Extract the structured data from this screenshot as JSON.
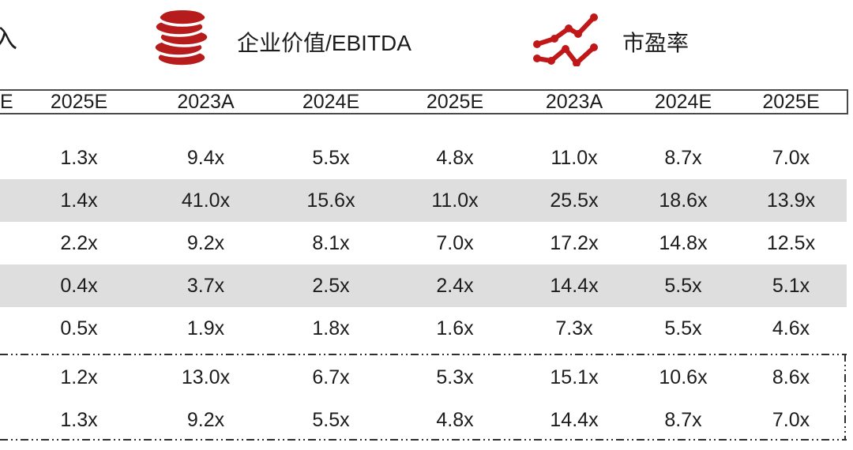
{
  "colors": {
    "accent_red": "#b71c1c",
    "row_shade": "#dedede",
    "text": "#1c1c1c",
    "header_border": "#4a4a4a"
  },
  "legend": {
    "clipped_label": "入",
    "ev_ebitda": {
      "icon": "coins-icon",
      "label": "企业价值/EBITDA"
    },
    "pe": {
      "icon": "line-chart-icon",
      "label": "市盈率"
    }
  },
  "table": {
    "header_clipped": "E",
    "header_cols": [
      "2025E",
      "2023A",
      "2024E",
      "2025E",
      "2023A",
      "2024E",
      "2025E"
    ],
    "rows": [
      {
        "shaded": false,
        "values": [
          "1.3x",
          "9.4x",
          "5.5x",
          "4.8x",
          "11.0x",
          "8.7x",
          "7.0x"
        ]
      },
      {
        "shaded": true,
        "values": [
          "1.4x",
          "41.0x",
          "15.6x",
          "11.0x",
          "25.5x",
          "18.6x",
          "13.9x"
        ]
      },
      {
        "shaded": false,
        "values": [
          "2.2x",
          "9.2x",
          "8.1x",
          "7.0x",
          "17.2x",
          "14.8x",
          "12.5x"
        ]
      },
      {
        "shaded": true,
        "values": [
          "0.4x",
          "3.7x",
          "2.5x",
          "2.4x",
          "14.4x",
          "5.5x",
          "5.1x"
        ]
      },
      {
        "shaded": false,
        "values": [
          "0.5x",
          "1.9x",
          "1.8x",
          "1.6x",
          "7.3x",
          "5.5x",
          "4.6x"
        ]
      }
    ],
    "dashed_rows": [
      {
        "values": [
          "1.2x",
          "13.0x",
          "6.7x",
          "5.3x",
          "15.1x",
          "10.6x",
          "8.6x"
        ]
      },
      {
        "values": [
          "1.3x",
          "9.2x",
          "5.5x",
          "4.8x",
          "14.4x",
          "8.7x",
          "7.0x"
        ]
      }
    ]
  }
}
